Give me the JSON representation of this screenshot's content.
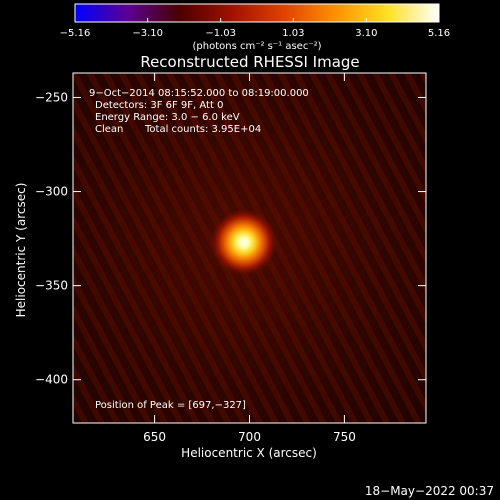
{
  "chart_data": {
    "type": "heatmap",
    "title": "Reconstructed RHESSI Image",
    "xlabel": "Heliocentric X (arcsec)",
    "ylabel": "Heliocentric Y (arcsec)",
    "xlim": [
      607,
      793
    ],
    "ylim": [
      -423,
      -237
    ],
    "x_ticks": [
      650,
      700,
      750
    ],
    "y_ticks": [
      -250,
      -300,
      -350,
      -400
    ],
    "peak": {
      "x": 697,
      "y": -327
    },
    "colorbar": {
      "colormap": "hot",
      "range": [
        -5.16,
        5.16
      ],
      "tick_values": [
        -5.16,
        -3.1,
        -1.03,
        1.03,
        3.1,
        5.16
      ],
      "tick_labels": [
        "−5.16",
        "−3.10",
        "−1.03",
        "1.03",
        "3.10",
        "5.16"
      ],
      "units_label": "(photons cm⁻² s⁻¹ asec⁻²)",
      "stops": [
        "#0000ff",
        "#5a0094",
        "#4a0000",
        "#a01000",
        "#e04000",
        "#ff9000",
        "#ffe020",
        "#ffffff"
      ]
    },
    "grid": false
  },
  "annotations": {
    "line1": "9−Oct−2014 08:15:52.000 to 08:19:00.000",
    "line2": "Detectors: 3F 6F 9F, Att 0",
    "line3": "Energy Range: 3.0 − 6.0 keV",
    "line4_method": "Clean",
    "line4_counts": "Total counts: 3.95E+04",
    "peak_text": "Position of Peak = [697,−327]"
  },
  "footer": {
    "timestamp": "18−May−2022 00:37"
  }
}
